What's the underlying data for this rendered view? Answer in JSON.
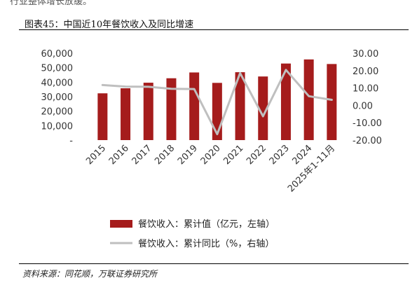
{
  "page": {
    "top_fragment": "行业整体增长放缓。",
    "figure_title": "图表45：中国近10年餐饮收入及同比增速",
    "source": "资料来源：同花顺，万联证券研究所"
  },
  "chart_data": {
    "type": "bar",
    "categories": [
      "2015",
      "2016",
      "2017",
      "2018",
      "2019",
      "2020",
      "2021",
      "2022",
      "2023",
      "2024",
      "2025年1-11月"
    ],
    "series": [
      {
        "name": "餐饮收入：累计值（亿元，左轴）",
        "type": "bar",
        "axis": "left",
        "color": "#A51C1C",
        "values": [
          32310,
          35799,
          39644,
          42716,
          46721,
          39527,
          46895,
          43941,
          52890,
          55718,
          52560
        ]
      },
      {
        "name": "餐饮收入：累计同比（%，右轴）",
        "type": "line",
        "axis": "right",
        "color": "#BFBFBF",
        "values": [
          11.7,
          10.8,
          10.7,
          9.5,
          9.4,
          -16.6,
          18.6,
          -6.3,
          20.4,
          5.3,
          3.2
        ]
      }
    ],
    "y_left": {
      "ylim": [
        0,
        60000
      ],
      "ticks": [
        0,
        10000,
        20000,
        30000,
        40000,
        50000,
        60000
      ],
      "tick_labels": [
        "-",
        "10,000",
        "20,000",
        "30,000",
        "40,000",
        "50,000",
        "60,000"
      ]
    },
    "y_right": {
      "ylim": [
        -20,
        30
      ],
      "ticks": [
        -20,
        -10,
        0,
        10,
        20,
        30
      ],
      "tick_labels": [
        "-20.00",
        "-10.00",
        "0.00",
        "10.00",
        "20.00",
        "30.00"
      ]
    },
    "grid": false,
    "legend_position": "bottom"
  }
}
